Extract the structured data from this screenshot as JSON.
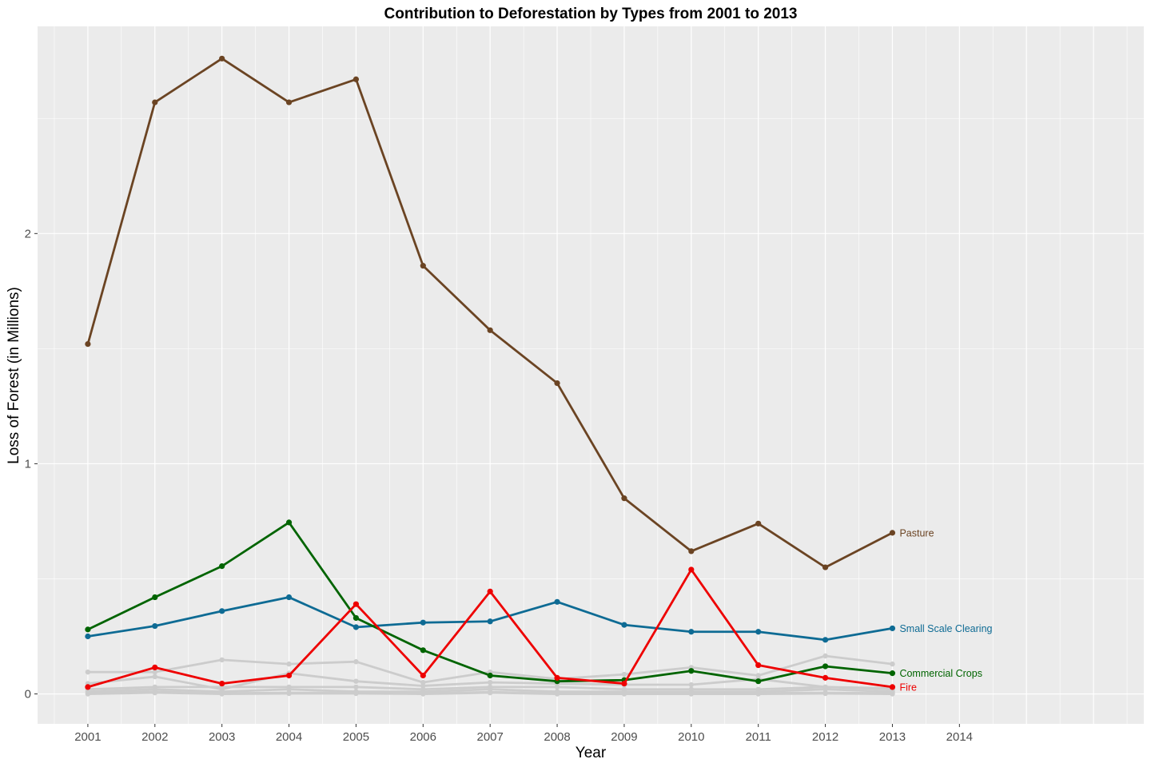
{
  "chart_data": {
    "type": "line",
    "title": "Contribution to Deforestation by Types from 2001 to 2013",
    "xlabel": "Year",
    "ylabel": "Loss of Forest (in Millions)",
    "x": [
      2001,
      2002,
      2003,
      2004,
      2005,
      2006,
      2007,
      2008,
      2009,
      2010,
      2011,
      2012,
      2013
    ],
    "x_ticks": [
      "2001",
      "2002",
      "2003",
      "2004",
      "2005",
      "2006",
      "2007",
      "2008",
      "2009",
      "2010",
      "2011",
      "2012",
      "2013",
      "2014"
    ],
    "y_ticks": [
      "0",
      "1",
      "2"
    ],
    "xlim": [
      2000.25,
      2016.75
    ],
    "ylim": [
      -0.13,
      2.9
    ],
    "grid": true,
    "legend": "direct labels at line ends",
    "background_series": [
      {
        "color": "#cccccc",
        "values": [
          0.095,
          0.095,
          0.148,
          0.13,
          0.14,
          0.05,
          0.095,
          0.065,
          0.085,
          0.115,
          0.08,
          0.165,
          0.13
        ]
      },
      {
        "color": "#cccccc",
        "values": [
          0.045,
          0.075,
          0.02,
          0.09,
          0.055,
          0.035,
          0.05,
          0.045,
          0.04,
          0.04,
          0.065,
          0.03,
          0.025
        ]
      },
      {
        "color": "#cccccc",
        "values": [
          0.02,
          0.03,
          0.03,
          0.03,
          0.03,
          0.02,
          0.03,
          0.03,
          0.02,
          0.02,
          0.02,
          0.03,
          0.02
        ]
      },
      {
        "color": "#cccccc",
        "values": [
          0.01,
          0.02,
          0.01,
          0.02,
          0.01,
          0.01,
          0.02,
          0.01,
          0.01,
          0.01,
          0.01,
          0.02,
          0.01
        ]
      },
      {
        "color": "#cccccc",
        "values": [
          0.003,
          0.01,
          0.003,
          0.005,
          0.005,
          0.003,
          0.008,
          0.003,
          0.003,
          0.003,
          0.003,
          0.005,
          0.003
        ]
      },
      {
        "color": "#cccccc",
        "values": [
          0.0,
          0.005,
          0.0,
          0.002,
          0.002,
          0.0,
          0.005,
          0.0,
          0.0,
          0.0,
          0.0,
          0.002,
          0.0
        ]
      }
    ],
    "series": [
      {
        "name": "Pasture",
        "color": "#6b4423",
        "values": [
          1.52,
          2.57,
          2.76,
          2.57,
          2.67,
          1.86,
          1.58,
          1.35,
          0.85,
          0.62,
          0.74,
          0.55,
          0.7
        ]
      },
      {
        "name": "Small Scale Clearing",
        "color": "#0e6b94",
        "values": [
          0.25,
          0.295,
          0.36,
          0.42,
          0.29,
          0.31,
          0.315,
          0.4,
          0.3,
          0.27,
          0.27,
          0.235,
          0.285
        ]
      },
      {
        "name": "Commercial Crops",
        "color": "#006400",
        "values": [
          0.28,
          0.42,
          0.555,
          0.745,
          0.33,
          0.19,
          0.08,
          0.055,
          0.06,
          0.1,
          0.055,
          0.12,
          0.09
        ]
      },
      {
        "name": "Fire",
        "color": "#ee0000",
        "values": [
          0.03,
          0.115,
          0.045,
          0.08,
          0.39,
          0.08,
          0.445,
          0.07,
          0.045,
          0.54,
          0.125,
          0.07,
          0.03
        ]
      }
    ],
    "colors": {
      "panel_background": "#ebebeb",
      "grid": "#ffffff",
      "background_lines": "#cccccc"
    }
  }
}
